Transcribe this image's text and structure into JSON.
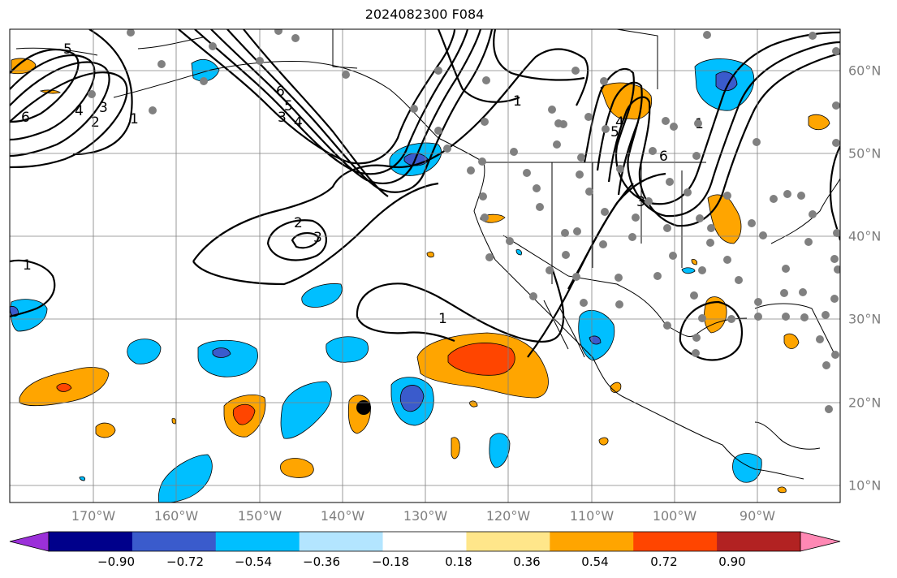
{
  "title": "2024082300 F084",
  "lon_labels": [
    "170°W",
    "160°W",
    "150°W",
    "140°W",
    "130°W",
    "120°W",
    "110°W",
    "100°W",
    "90°W"
  ],
  "lat_labels": [
    "60°N",
    "50°N",
    "40°N",
    "30°N",
    "20°N",
    "10°N"
  ],
  "colorbar": {
    "tick_labels": [
      "−0.90",
      "−0.72",
      "−0.54",
      "−0.36",
      "−0.18",
      "0.18",
      "0.36",
      "0.54",
      "0.72",
      "0.90"
    ],
    "colors": [
      "#9b30d9",
      "#00008b",
      "#3a5bcc",
      "#00bfff",
      "#b3e5ff",
      "#ffffff",
      "#ffe68a",
      "#ffa500",
      "#ff4500",
      "#b22222",
      "#ff88b4"
    ]
  },
  "contour_labels": [
    "5",
    "6",
    "4",
    "3",
    "2",
    "1",
    "6",
    "5",
    "4",
    "3",
    "2",
    "3",
    "1",
    "1",
    "1",
    "6",
    "5",
    "4",
    "3",
    "1"
  ]
}
